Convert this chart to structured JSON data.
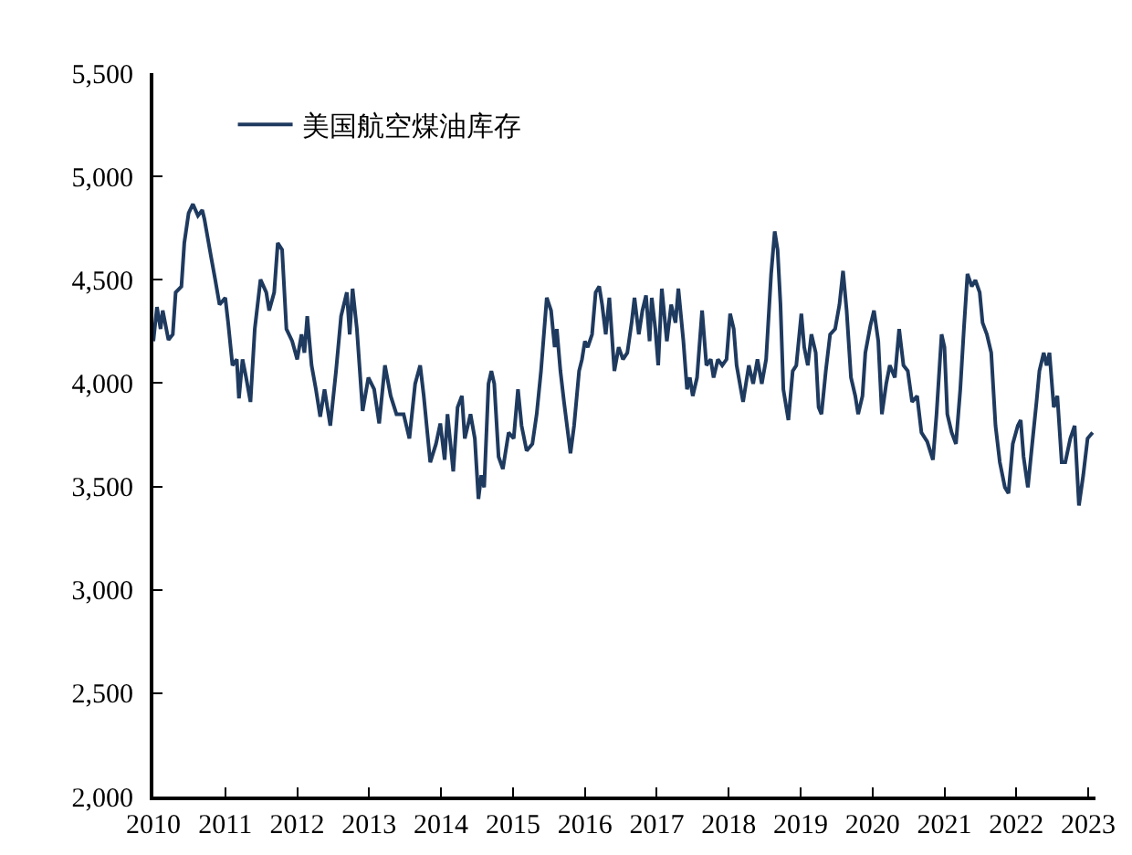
{
  "chart_data": {
    "type": "line",
    "grid": false,
    "legend": "top left",
    "marker": "none",
    "line_style": "solid",
    "xlim": [
      2010,
      2023.1
    ],
    "xticks": [
      2010,
      2011,
      2012,
      2013,
      2014,
      2015,
      2016,
      2017,
      2018,
      2019,
      2020,
      2021,
      2022,
      2023
    ],
    "ylim": [
      2000,
      5500
    ],
    "yticks": [
      {
        "value": 2000,
        "label": "2,000"
      },
      {
        "value": 2500,
        "label": "2,500"
      },
      {
        "value": 3000,
        "label": "3,000"
      },
      {
        "value": 3500,
        "label": "3,500"
      },
      {
        "value": 4000,
        "label": "4,000"
      },
      {
        "value": 4500,
        "label": "4,500"
      },
      {
        "value": 5000,
        "label": "5,000"
      },
      {
        "value": 5500,
        "label": "5,500"
      }
    ],
    "series": [
      {
        "name": "美国航空煤油库存",
        "color": "#1f3a5f",
        "x": [
          2010.0,
          2010.05,
          2010.1,
          2010.13,
          2010.21,
          2010.27,
          2010.31,
          2010.39,
          2010.43,
          2010.49,
          2010.55,
          2010.62,
          2010.68,
          2010.71,
          2010.8,
          2010.86,
          2010.92,
          2011.0,
          2011.04,
          2011.1,
          2011.16,
          2011.19,
          2011.24,
          2011.29,
          2011.35,
          2011.41,
          2011.49,
          2011.57,
          2011.61,
          2011.68,
          2011.73,
          2011.79,
          2011.85,
          2011.93,
          2012.0,
          2012.06,
          2012.1,
          2012.14,
          2012.2,
          2012.26,
          2012.32,
          2012.38,
          2012.46,
          2012.54,
          2012.61,
          2012.69,
          2012.73,
          2012.77,
          2012.83,
          2012.91,
          2012.99,
          2013.07,
          2013.14,
          2013.22,
          2013.3,
          2013.38,
          2013.48,
          2013.56,
          2013.64,
          2013.71,
          2013.76,
          2013.85,
          2013.93,
          2013.99,
          2014.05,
          2014.09,
          2014.17,
          2014.23,
          2014.29,
          2014.33,
          2014.41,
          2014.47,
          2014.52,
          2014.56,
          2014.6,
          2014.66,
          2014.7,
          2014.74,
          2014.8,
          2014.86,
          2014.94,
          2015.01,
          2015.07,
          2015.12,
          2015.19,
          2015.27,
          2015.33,
          2015.39,
          2015.47,
          2015.53,
          2015.58,
          2015.61,
          2015.66,
          2015.71,
          2015.8,
          2015.85,
          2015.92,
          2015.96,
          2016.0,
          2016.04,
          2016.1,
          2016.15,
          2016.2,
          2016.24,
          2016.29,
          2016.34,
          2016.41,
          2016.47,
          2016.53,
          2016.59,
          2016.65,
          2016.69,
          2016.75,
          2016.8,
          2016.85,
          2016.9,
          2016.93,
          2016.98,
          2017.02,
          2017.07,
          2017.14,
          2017.2,
          2017.26,
          2017.3,
          2017.37,
          2017.42,
          2017.46,
          2017.5,
          2017.56,
          2017.63,
          2017.69,
          2017.75,
          2017.79,
          2017.85,
          2017.91,
          2017.97,
          2018.02,
          2018.07,
          2018.11,
          2018.2,
          2018.28,
          2018.34,
          2018.4,
          2018.46,
          2018.52,
          2018.59,
          2018.64,
          2018.68,
          2018.72,
          2018.76,
          2018.83,
          2018.89,
          2018.94,
          2019.01,
          2019.05,
          2019.1,
          2019.15,
          2019.21,
          2019.25,
          2019.29,
          2019.35,
          2019.41,
          2019.48,
          2019.54,
          2019.59,
          2019.64,
          2019.7,
          2019.76,
          2019.8,
          2019.86,
          2019.9,
          2019.97,
          2020.02,
          2020.08,
          2020.13,
          2020.19,
          2020.24,
          2020.31,
          2020.37,
          2020.43,
          2020.49,
          2020.55,
          2020.62,
          2020.68,
          2020.76,
          2020.84,
          2020.89,
          2020.96,
          2021.0,
          2021.04,
          2021.1,
          2021.16,
          2021.22,
          2021.27,
          2021.32,
          2021.38,
          2021.43,
          2021.49,
          2021.53,
          2021.59,
          2021.65,
          2021.71,
          2021.77,
          2021.84,
          2021.89,
          2021.95,
          2022.02,
          2022.06,
          2022.1,
          2022.16,
          2022.22,
          2022.28,
          2022.32,
          2022.38,
          2022.42,
          2022.46,
          2022.52,
          2022.57,
          2022.63,
          2022.68,
          2022.75,
          2022.81,
          2022.87,
          2022.93,
          2022.99,
          2023.06
        ],
        "values": [
          4203,
          4368,
          4262,
          4351,
          4209,
          4236,
          4439,
          4468,
          4678,
          4822,
          4866,
          4810,
          4837,
          4793,
          4616,
          4501,
          4380,
          4413,
          4292,
          4086,
          4115,
          3926,
          4115,
          4027,
          3909,
          4262,
          4501,
          4439,
          4351,
          4439,
          4678,
          4645,
          4262,
          4203,
          4115,
          4236,
          4147,
          4324,
          4086,
          3970,
          3838,
          3970,
          3794,
          4059,
          4324,
          4439,
          4236,
          4457,
          4262,
          3865,
          4027,
          3970,
          3805,
          4086,
          3938,
          3850,
          3850,
          3732,
          3997,
          4086,
          3938,
          3617,
          3706,
          3805,
          3629,
          3850,
          3573,
          3883,
          3938,
          3732,
          3850,
          3732,
          3440,
          3555,
          3496,
          3997,
          4059,
          3997,
          3644,
          3585,
          3761,
          3732,
          3970,
          3794,
          3673,
          3706,
          3850,
          4059,
          4413,
          4351,
          4174,
          4262,
          4059,
          3909,
          3661,
          3794,
          4059,
          4115,
          4203,
          4174,
          4236,
          4439,
          4468,
          4380,
          4236,
          4413,
          4059,
          4174,
          4115,
          4147,
          4292,
          4413,
          4236,
          4351,
          4424,
          4203,
          4413,
          4262,
          4086,
          4457,
          4203,
          4380,
          4292,
          4457,
          4203,
          3970,
          4027,
          3938,
          4027,
          4351,
          4086,
          4115,
          4027,
          4115,
          4086,
          4115,
          4336,
          4262,
          4086,
          3909,
          4086,
          3997,
          4115,
          3997,
          4115,
          4528,
          4734,
          4645,
          4380,
          3970,
          3821,
          4059,
          4086,
          4336,
          4174,
          4086,
          4236,
          4147,
          3883,
          3850,
          4059,
          4236,
          4262,
          4380,
          4543,
          4351,
          4027,
          3938,
          3850,
          3938,
          4147,
          4278,
          4351,
          4203,
          3850,
          3997,
          4086,
          4027,
          4262,
          4086,
          4059,
          3909,
          3938,
          3761,
          3717,
          3629,
          3850,
          4236,
          4174,
          3850,
          3761,
          3706,
          3970,
          4262,
          4528,
          4468,
          4498,
          4439,
          4292,
          4236,
          4147,
          3794,
          3617,
          3496,
          3467,
          3706,
          3794,
          3821,
          3644,
          3496,
          3706,
          3909,
          4059,
          4147,
          4086,
          4147,
          3883,
          3938,
          3617,
          3617,
          3732,
          3794,
          3408,
          3555,
          3732,
          3761
        ]
      }
    ]
  }
}
